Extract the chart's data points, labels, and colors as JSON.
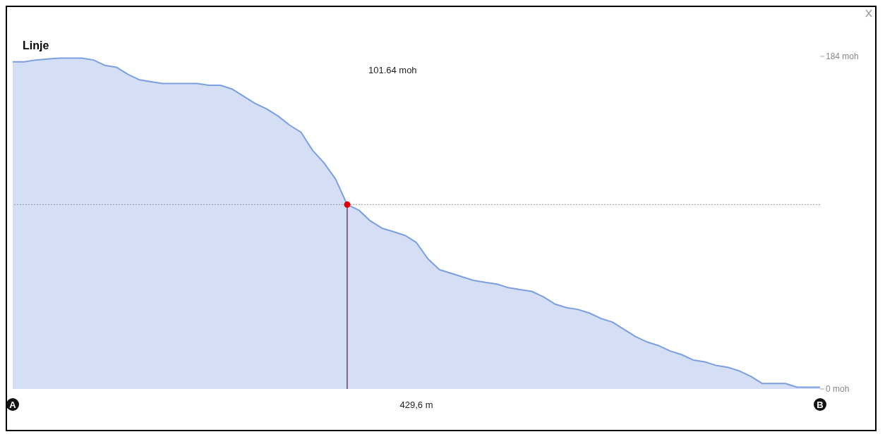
{
  "chart_data": {
    "type": "area",
    "title": "Linje",
    "xlabel": "429,6 m",
    "categories": [
      "A",
      null,
      null,
      null,
      null,
      null,
      null,
      null,
      null,
      null,
      null,
      null,
      null,
      null,
      null,
      null,
      null,
      null,
      null,
      null,
      null,
      null,
      null,
      null,
      null,
      null,
      null,
      null,
      null,
      null,
      null,
      null,
      null,
      null,
      null,
      null,
      null,
      null,
      null,
      null,
      null,
      null,
      null,
      null,
      null,
      null,
      null,
      null,
      null,
      null,
      null,
      null,
      null,
      null,
      null,
      null,
      null,
      null,
      null,
      null,
      null,
      null,
      null,
      null,
      null,
      null,
      null,
      null,
      null,
      null,
      "B"
    ],
    "series": [
      {
        "color": "#7b9fe0",
        "values": [
          181,
          181,
          182,
          182.5,
          183,
          183,
          183,
          182,
          179,
          178,
          174,
          171,
          170,
          169,
          169,
          169,
          169,
          168,
          168,
          166,
          162,
          158,
          155,
          151,
          146,
          142,
          132,
          125,
          116,
          102,
          99,
          93,
          89,
          87,
          85,
          81,
          72,
          66,
          64,
          62,
          60,
          59,
          58,
          56,
          55,
          54,
          51,
          47,
          45,
          44,
          42,
          39,
          37,
          33,
          29,
          26,
          24,
          21,
          19,
          16,
          15,
          13,
          12,
          10,
          7,
          3,
          3,
          3,
          1,
          1,
          1
        ]
      },
      {
        "type": "scatter",
        "color": "#e00000",
        "marker": "circle",
        "values": [
          null,
          null,
          null,
          null,
          null,
          null,
          null,
          null,
          null,
          null,
          null,
          null,
          null,
          null,
          null,
          null,
          null,
          null,
          null,
          null,
          null,
          null,
          null,
          null,
          null,
          null,
          null,
          null,
          null,
          102,
          null,
          null,
          null,
          null,
          null,
          null,
          null,
          null,
          null,
          null,
          null,
          null,
          null,
          null,
          null,
          null,
          null,
          null,
          null,
          null,
          null,
          null,
          null,
          null,
          null,
          null,
          null,
          null,
          null,
          null,
          null,
          null,
          null,
          null,
          null,
          null,
          null,
          null,
          null,
          null,
          null
        ]
      }
    ],
    "ylim": [
      0,
      184
    ],
    "yticks": [
      {
        "value": 0,
        "label": "0 moh"
      },
      {
        "value": 184,
        "label": "184 moh"
      }
    ],
    "ref_lines": [
      {
        "axis": "y",
        "value": 102,
        "color": "#999999",
        "line_style": "dotted"
      }
    ],
    "annotations": [
      "101.64 moh"
    ]
  }
}
